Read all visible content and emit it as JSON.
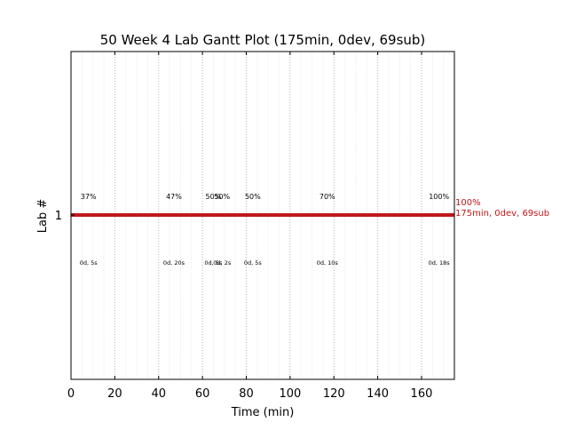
{
  "chart_data": {
    "type": "gantt",
    "title": "50 Week 4 Lab Gantt Plot (175min, 0dev, 69sub)",
    "xlabel": "Time (min)",
    "ylabel": "Lab #",
    "xlim": [
      0,
      175
    ],
    "x_ticks": [
      0,
      20,
      40,
      60,
      80,
      100,
      120,
      140,
      160
    ],
    "minor_grid_step": 5,
    "grid": true,
    "lanes": [
      {
        "lab": "1",
        "bar_start": 0,
        "bar_end": 175,
        "color": "#c0181b",
        "end_label_lines": [
          "100%",
          "175min, 0dev, 69sub"
        ],
        "events": [
          {
            "x": 10,
            "top": "37%",
            "bottom": "0d, 5s"
          },
          {
            "x": 49,
            "top": "47%",
            "bottom": "0d, 20s"
          },
          {
            "x": 67,
            "top": "50%",
            "bottom": "0d, 5s"
          },
          {
            "x": 71,
            "top": "50%",
            "bottom": "0d, 2s"
          },
          {
            "x": 85,
            "top": "50%",
            "bottom": "0d, 5s"
          },
          {
            "x": 119,
            "top": "70%",
            "bottom": "0d, 10s"
          },
          {
            "x": 170,
            "top": "100%",
            "bottom": "0d, 18s"
          }
        ]
      }
    ]
  }
}
